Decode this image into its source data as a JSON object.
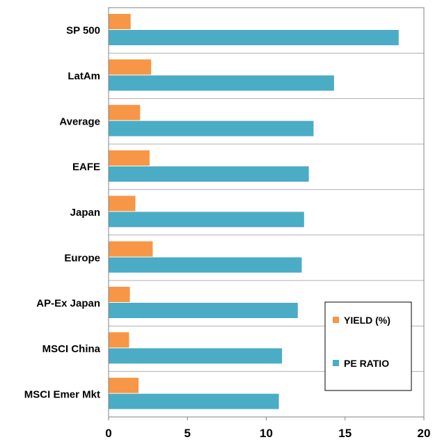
{
  "chart_data": {
    "type": "bar",
    "orientation": "horizontal",
    "categories": [
      "SP 500",
      "LatAm",
      "Average",
      "EAFE",
      "Japan",
      "Europe",
      "AP-Ex Japan",
      "MSCI China",
      "MSCI Emer Mkt"
    ],
    "series": [
      {
        "name": "YIELD (%)",
        "color": "#F79646",
        "values": [
          1.4,
          2.7,
          2.0,
          2.6,
          1.7,
          2.8,
          1.35,
          1.3,
          1.9
        ]
      },
      {
        "name": "PE RATIO",
        "color": "#4BACC6",
        "values": [
          18.4,
          14.3,
          13.0,
          12.7,
          12.4,
          12.25,
          12.0,
          11.0,
          10.8
        ]
      }
    ],
    "xlim": [
      0,
      20
    ],
    "xticks": [
      "0",
      "5",
      "10",
      "15",
      "20"
    ],
    "grid": true,
    "legend_position": "bottom-right"
  }
}
